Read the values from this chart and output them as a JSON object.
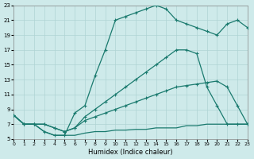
{
  "xlabel": "Humidex (Indice chaleur)",
  "background_color": "#ceeaea",
  "line_color": "#1a7a6e",
  "grid_color": "#afd4d4",
  "xlim": [
    0,
    23
  ],
  "ylim": [
    5,
    23
  ],
  "yticks": [
    5,
    7,
    9,
    11,
    13,
    15,
    17,
    19,
    21,
    23
  ],
  "xticks": [
    0,
    1,
    2,
    3,
    4,
    5,
    6,
    7,
    8,
    9,
    10,
    11,
    12,
    13,
    14,
    15,
    16,
    17,
    18,
    19,
    20,
    21,
    22,
    23
  ],
  "line_top_x": [
    0,
    1,
    2,
    3,
    4,
    5,
    6,
    7,
    8,
    9,
    10,
    11,
    12,
    13,
    14,
    15,
    16,
    17,
    18,
    19,
    20,
    21,
    22,
    23
  ],
  "line_top_y": [
    8.2,
    7,
    7,
    6,
    5.5,
    5.5,
    8.5,
    9.5,
    13.5,
    17,
    21,
    21.5,
    22,
    22.5,
    23,
    22.5,
    21,
    20.5,
    20,
    19.5,
    19,
    20.5,
    21,
    20
  ],
  "line_mid_x": [
    0,
    1,
    2,
    3,
    4,
    5,
    6,
    7,
    8,
    9,
    10,
    11,
    12,
    13,
    14,
    15,
    16,
    17,
    18,
    19,
    20,
    21,
    22,
    23
  ],
  "line_mid_y": [
    8.2,
    7,
    7,
    7,
    6.5,
    6,
    6.5,
    8,
    9,
    10,
    11,
    12,
    13,
    14,
    15,
    16,
    17,
    17,
    16.5,
    12,
    9.5,
    7,
    7,
    7
  ],
  "line_low_x": [
    0,
    1,
    2,
    3,
    4,
    5,
    6,
    7,
    8,
    9,
    10,
    11,
    12,
    13,
    14,
    15,
    16,
    17,
    18,
    19,
    20,
    21,
    22,
    23
  ],
  "line_low_y": [
    8.2,
    7,
    7,
    7,
    6.5,
    6,
    6.5,
    7.5,
    8,
    8.5,
    9,
    9.5,
    10,
    10.5,
    11,
    11.5,
    12,
    12.2,
    12.4,
    12.6,
    12.8,
    12,
    9.5,
    7
  ],
  "line_flat_x": [
    0,
    1,
    2,
    3,
    4,
    5,
    6,
    7,
    8,
    9,
    10,
    11,
    12,
    13,
    14,
    15,
    16,
    17,
    18,
    19,
    20,
    21,
    22,
    23
  ],
  "line_flat_y": [
    8.2,
    7,
    7,
    6,
    5.5,
    5.5,
    5.5,
    5.8,
    6,
    6,
    6.2,
    6.2,
    6.3,
    6.3,
    6.5,
    6.5,
    6.5,
    6.8,
    6.8,
    7.0,
    7.0,
    7.0,
    7.0,
    7.0
  ]
}
